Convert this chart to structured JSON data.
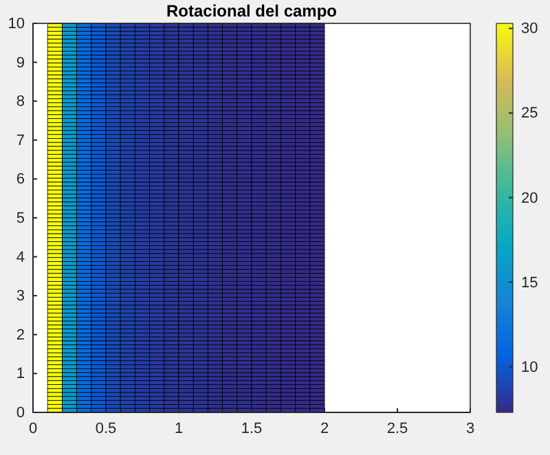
{
  "chart_data": {
    "type": "heatmap",
    "title": "Rotacional del campo",
    "x": [
      0.15,
      0.25,
      0.35,
      0.45,
      0.55,
      0.65,
      0.75,
      0.85,
      0.95,
      1.05,
      1.15,
      1.25,
      1.35,
      1.45,
      1.55,
      1.65,
      1.75,
      1.85,
      1.95
    ],
    "xlim": [
      0,
      3
    ],
    "xticks": [
      0,
      0.5,
      1,
      1.5,
      2,
      2.5,
      3
    ],
    "ylim": [
      0,
      10
    ],
    "yticks": [
      0,
      1,
      2,
      3,
      4,
      5,
      6,
      7,
      8,
      9,
      10
    ],
    "clim": [
      7.3,
      30.3
    ],
    "cticks": [
      10,
      15,
      20,
      25,
      30
    ],
    "cells": [
      [
        30.3,
        16,
        11.5,
        10,
        9.2,
        8.7,
        8.4,
        8.2,
        8,
        7.9,
        7.8,
        7.7,
        7.6,
        7.6,
        7.5,
        7.5,
        7.4,
        7.4,
        7.4
      ],
      [
        30.3,
        16,
        11.5,
        10,
        9.2,
        8.7,
        8.4,
        8.2,
        8,
        7.9,
        7.8,
        7.7,
        7.6,
        7.6,
        7.5,
        7.5,
        7.4,
        7.4,
        7.4
      ],
      [
        30.3,
        16,
        11.5,
        10,
        9.2,
        8.7,
        8.4,
        8.2,
        8,
        7.9,
        7.8,
        7.7,
        7.6,
        7.6,
        7.5,
        7.5,
        7.4,
        7.4,
        7.4
      ],
      [
        30.3,
        16,
        11.5,
        10,
        9.2,
        8.7,
        8.4,
        8.2,
        8,
        7.9,
        7.8,
        7.7,
        7.6,
        7.6,
        7.5,
        7.5,
        7.4,
        7.4,
        7.4
      ],
      [
        30.3,
        16,
        11.5,
        10,
        9.2,
        8.7,
        8.4,
        8.2,
        8,
        7.9,
        7.8,
        7.7,
        7.6,
        7.6,
        7.5,
        7.5,
        7.4,
        7.4,
        7.4
      ],
      [
        30.3,
        16,
        11.5,
        10,
        9.2,
        8.7,
        8.4,
        8.2,
        8,
        7.9,
        7.8,
        7.7,
        7.6,
        7.6,
        7.5,
        7.5,
        7.4,
        7.4,
        7.4
      ],
      [
        30.3,
        16,
        11.5,
        10,
        9.2,
        8.7,
        8.4,
        8.2,
        8,
        7.9,
        7.8,
        7.7,
        7.6,
        7.6,
        7.5,
        7.5,
        7.4,
        7.4,
        7.4
      ],
      [
        30.3,
        16,
        11.5,
        10,
        9.2,
        8.7,
        8.4,
        8.2,
        8,
        7.9,
        7.8,
        7.7,
        7.6,
        7.6,
        7.5,
        7.5,
        7.4,
        7.4,
        7.4
      ],
      [
        30.3,
        16,
        11.5,
        10,
        9.2,
        8.7,
        8.4,
        8.2,
        8,
        7.9,
        7.8,
        7.7,
        7.6,
        7.6,
        7.5,
        7.5,
        7.4,
        7.4,
        7.4
      ],
      [
        30.3,
        16,
        11.5,
        10,
        9.2,
        8.7,
        8.4,
        8.2,
        8,
        7.9,
        7.8,
        7.7,
        7.6,
        7.6,
        7.5,
        7.5,
        7.4,
        7.4,
        7.4
      ],
      [
        30.3,
        16,
        11.5,
        10,
        9.2,
        8.7,
        8.4,
        8.2,
        8,
        7.9,
        7.8,
        7.7,
        7.6,
        7.6,
        7.5,
        7.5,
        7.4,
        7.4,
        7.4
      ],
      [
        30.3,
        16,
        11.5,
        10,
        9.2,
        8.7,
        8.4,
        8.2,
        8,
        7.9,
        7.8,
        7.7,
        7.6,
        7.6,
        7.5,
        7.5,
        7.4,
        7.4,
        7.4
      ],
      [
        30.3,
        16,
        11.5,
        10,
        9.2,
        8.7,
        8.4,
        8.2,
        8,
        7.9,
        7.8,
        7.7,
        7.6,
        7.6,
        7.5,
        7.5,
        7.4,
        7.4,
        7.4
      ],
      [
        30.3,
        16,
        11.5,
        10,
        9.2,
        8.7,
        8.4,
        8.2,
        8,
        7.9,
        7.8,
        7.7,
        7.6,
        7.6,
        7.5,
        7.5,
        7.4,
        7.4,
        7.4
      ],
      [
        30.3,
        16,
        11.5,
        10,
        9.2,
        8.7,
        8.4,
        8.2,
        8,
        7.9,
        7.8,
        7.7,
        7.6,
        7.6,
        7.5,
        7.5,
        7.4,
        7.4,
        7.4
      ],
      [
        30.3,
        16,
        11.5,
        10,
        9.2,
        8.7,
        8.4,
        8.2,
        8,
        7.9,
        7.8,
        7.7,
        7.6,
        7.6,
        7.5,
        7.5,
        7.4,
        7.4,
        7.4
      ],
      [
        30.3,
        16,
        11.5,
        10,
        9.2,
        8.7,
        8.4,
        8.2,
        8,
        7.9,
        7.8,
        7.7,
        7.6,
        7.6,
        7.5,
        7.5,
        7.4,
        7.4,
        7.4
      ],
      [
        30.3,
        16,
        11.5,
        10,
        9.2,
        8.7,
        8.4,
        8.2,
        8,
        7.9,
        7.8,
        7.7,
        7.6,
        7.6,
        7.5,
        7.5,
        7.4,
        7.4,
        7.4
      ],
      [
        30.3,
        16,
        11.5,
        10,
        9.2,
        8.7,
        8.4,
        8.2,
        8,
        7.9,
        7.8,
        7.7,
        7.6,
        7.6,
        7.5,
        7.5,
        7.4,
        7.4,
        7.4
      ],
      [
        30.3,
        16,
        11.5,
        10,
        9.2,
        8.7,
        8.4,
        8.2,
        8,
        7.9,
        7.8,
        7.7,
        7.6,
        7.6,
        7.5,
        7.5,
        7.4,
        7.4,
        7.4
      ],
      [
        30.3,
        16,
        11.5,
        10,
        9.2,
        8.7,
        8.4,
        8.2,
        8,
        7.9,
        7.8,
        7.7,
        7.6,
        7.6,
        7.5,
        7.5,
        7.4,
        7.4,
        7.4
      ],
      [
        30.3,
        16,
        11.5,
        10,
        9.2,
        8.7,
        8.4,
        8.2,
        8,
        7.9,
        7.8,
        7.7,
        7.6,
        7.6,
        7.5,
        7.5,
        7.4,
        7.4,
        7.4
      ],
      [
        30.3,
        16,
        11.5,
        10,
        9.2,
        8.7,
        8.4,
        8.2,
        8,
        7.9,
        7.8,
        7.7,
        7.6,
        7.6,
        7.5,
        7.5,
        7.4,
        7.4,
        7.4
      ],
      [
        30.3,
        16,
        11.5,
        10,
        9.2,
        8.7,
        8.4,
        8.2,
        8,
        7.9,
        7.8,
        7.7,
        7.6,
        7.6,
        7.5,
        7.5,
        7.4,
        7.4,
        7.4
      ],
      [
        30.3,
        16,
        11.5,
        10,
        9.2,
        8.7,
        8.4,
        8.2,
        8,
        7.9,
        7.8,
        7.7,
        7.6,
        7.6,
        7.5,
        7.5,
        7.4,
        7.4,
        7.4
      ],
      [
        30.3,
        16,
        11.5,
        10,
        9.2,
        8.7,
        8.4,
        8.2,
        8,
        7.9,
        7.8,
        7.7,
        7.6,
        7.6,
        7.5,
        7.5,
        7.4,
        7.4,
        7.4
      ],
      [
        30.3,
        16,
        11.5,
        10,
        9.2,
        8.7,
        8.4,
        8.2,
        8,
        7.9,
        7.8,
        7.7,
        7.6,
        7.6,
        7.5,
        7.5,
        7.4,
        7.4,
        7.4
      ],
      [
        30.3,
        16,
        11.5,
        10,
        9.2,
        8.7,
        8.4,
        8.2,
        8,
        7.9,
        7.8,
        7.7,
        7.6,
        7.6,
        7.5,
        7.5,
        7.4,
        7.4,
        7.4
      ],
      [
        30.3,
        16,
        11.5,
        10,
        9.2,
        8.7,
        8.4,
        8.2,
        8,
        7.9,
        7.8,
        7.7,
        7.6,
        7.6,
        7.5,
        7.5,
        7.4,
        7.4,
        7.4
      ],
      [
        30.3,
        16,
        11.5,
        10,
        9.2,
        8.7,
        8.4,
        8.2,
        8,
        7.9,
        7.8,
        7.7,
        7.6,
        7.6,
        7.5,
        7.5,
        7.4,
        7.4,
        7.4
      ],
      [
        30.3,
        16,
        11.5,
        10,
        9.2,
        8.7,
        8.4,
        8.2,
        8,
        7.9,
        7.8,
        7.7,
        7.6,
        7.6,
        7.5,
        7.5,
        7.4,
        7.4,
        7.4
      ],
      [
        30.3,
        16,
        11.5,
        10,
        9.2,
        8.7,
        8.4,
        8.2,
        8,
        7.9,
        7.8,
        7.7,
        7.6,
        7.6,
        7.5,
        7.5,
        7.4,
        7.4,
        7.4
      ],
      [
        30.3,
        16,
        11.5,
        10,
        9.2,
        8.7,
        8.4,
        8.2,
        8,
        7.9,
        7.8,
        7.7,
        7.6,
        7.6,
        7.5,
        7.5,
        7.4,
        7.4,
        7.4
      ],
      [
        30.3,
        16,
        11.5,
        10,
        9.2,
        8.7,
        8.4,
        8.2,
        8,
        7.9,
        7.8,
        7.7,
        7.6,
        7.6,
        7.5,
        7.5,
        7.4,
        7.4,
        7.4
      ],
      [
        30.3,
        16,
        11.5,
        10,
        9.2,
        8.7,
        8.4,
        8.2,
        8,
        7.9,
        7.8,
        7.7,
        7.6,
        7.6,
        7.5,
        7.5,
        7.4,
        7.4,
        7.4
      ],
      [
        30.3,
        16,
        11.5,
        10,
        9.2,
        8.7,
        8.4,
        8.2,
        8,
        7.9,
        7.8,
        7.7,
        7.6,
        7.6,
        7.5,
        7.5,
        7.4,
        7.4,
        7.4
      ],
      [
        30.3,
        16,
        11.5,
        10,
        9.2,
        8.7,
        8.4,
        8.2,
        8,
        7.9,
        7.8,
        7.7,
        7.6,
        7.6,
        7.5,
        7.5,
        7.4,
        7.4,
        7.4
      ],
      [
        30.3,
        16,
        11.5,
        10,
        9.2,
        8.7,
        8.4,
        8.2,
        8,
        7.9,
        7.8,
        7.7,
        7.6,
        7.6,
        7.5,
        7.5,
        7.4,
        7.4,
        7.4
      ],
      [
        30.3,
        16,
        11.5,
        10,
        9.2,
        8.7,
        8.4,
        8.2,
        8,
        7.9,
        7.8,
        7.7,
        7.6,
        7.6,
        7.5,
        7.5,
        7.4,
        7.4,
        7.4
      ],
      [
        30.3,
        16,
        11.5,
        10,
        9.2,
        8.7,
        8.4,
        8.2,
        8,
        7.9,
        7.8,
        7.7,
        7.6,
        7.6,
        7.5,
        7.5,
        7.4,
        7.4,
        7.4
      ],
      [
        30.3,
        16,
        11.5,
        10,
        9.2,
        8.7,
        8.4,
        8.2,
        8,
        7.9,
        7.8,
        7.7,
        7.6,
        7.6,
        7.5,
        7.5,
        7.4,
        7.4,
        7.4
      ],
      [
        30.3,
        16,
        11.5,
        10,
        9.2,
        8.7,
        8.4,
        8.2,
        8,
        7.9,
        7.8,
        7.7,
        7.6,
        7.6,
        7.5,
        7.5,
        7.4,
        7.4,
        7.4
      ],
      [
        30.3,
        16,
        11.5,
        10,
        9.2,
        8.7,
        8.4,
        8.2,
        8,
        7.9,
        7.8,
        7.7,
        7.6,
        7.6,
        7.5,
        7.5,
        7.4,
        7.4,
        7.4
      ],
      [
        30.3,
        16,
        11.5,
        10,
        9.2,
        8.7,
        8.4,
        8.2,
        8,
        7.9,
        7.8,
        7.7,
        7.6,
        7.6,
        7.5,
        7.5,
        7.4,
        7.4,
        7.4
      ],
      [
        30.3,
        16,
        11.5,
        10,
        9.2,
        8.7,
        8.4,
        8.2,
        8,
        7.9,
        7.8,
        7.7,
        7.6,
        7.6,
        7.5,
        7.5,
        7.4,
        7.4,
        7.4
      ],
      [
        30.3,
        16,
        11.5,
        10,
        9.2,
        8.7,
        8.4,
        8.2,
        8,
        7.9,
        7.8,
        7.7,
        7.6,
        7.6,
        7.5,
        7.5,
        7.4,
        7.4,
        7.4
      ],
      [
        30.3,
        16,
        11.5,
        10,
        9.2,
        8.7,
        8.4,
        8.2,
        8,
        7.9,
        7.8,
        7.7,
        7.6,
        7.6,
        7.5,
        7.5,
        7.4,
        7.4,
        7.4
      ],
      [
        30.3,
        16,
        11.5,
        10,
        9.2,
        8.7,
        8.4,
        8.2,
        8,
        7.9,
        7.8,
        7.7,
        7.6,
        7.6,
        7.5,
        7.5,
        7.4,
        7.4,
        7.4
      ],
      [
        30.3,
        16,
        11.5,
        10,
        9.2,
        8.7,
        8.4,
        8.2,
        8,
        7.9,
        7.8,
        7.7,
        7.6,
        7.6,
        7.5,
        7.5,
        7.4,
        7.4,
        7.4
      ],
      [
        30.3,
        16,
        11.5,
        10,
        9.2,
        8.7,
        8.4,
        8.2,
        8,
        7.9,
        7.8,
        7.7,
        7.6,
        7.6,
        7.5,
        7.5,
        7.4,
        7.4,
        7.4
      ],
      [
        30.3,
        16,
        11.5,
        10,
        9.2,
        8.7,
        8.4,
        8.2,
        8,
        7.9,
        7.8,
        7.7,
        7.6,
        7.6,
        7.5,
        7.5,
        7.4,
        7.4,
        7.4
      ],
      [
        30.3,
        16,
        11.5,
        10,
        9.2,
        8.7,
        8.4,
        8.2,
        8,
        7.9,
        7.8,
        7.7,
        7.6,
        7.6,
        7.5,
        7.5,
        7.4,
        7.4,
        7.4
      ],
      [
        30.3,
        16,
        11.5,
        10,
        9.2,
        8.7,
        8.4,
        8.2,
        8,
        7.9,
        7.8,
        7.7,
        7.6,
        7.6,
        7.5,
        7.5,
        7.4,
        7.4,
        7.4
      ],
      [
        30.3,
        16,
        11.5,
        10,
        9.2,
        8.7,
        8.4,
        8.2,
        8,
        7.9,
        7.8,
        7.7,
        7.6,
        7.6,
        7.5,
        7.5,
        7.4,
        7.4,
        7.4
      ],
      [
        30.3,
        16,
        11.5,
        10,
        9.2,
        8.7,
        8.4,
        8.2,
        8,
        7.9,
        7.8,
        7.7,
        7.6,
        7.6,
        7.5,
        7.5,
        7.4,
        7.4,
        7.4
      ],
      [
        30.3,
        16,
        11.5,
        10,
        9.2,
        8.7,
        8.4,
        8.2,
        8,
        7.9,
        7.8,
        7.7,
        7.6,
        7.6,
        7.5,
        7.5,
        7.4,
        7.4,
        7.4
      ],
      [
        30.3,
        16,
        11.5,
        10,
        9.2,
        8.7,
        8.4,
        8.2,
        8,
        7.9,
        7.8,
        7.7,
        7.6,
        7.6,
        7.5,
        7.5,
        7.4,
        7.4,
        7.4
      ],
      [
        30.3,
        16,
        11.5,
        10,
        9.2,
        8.7,
        8.4,
        8.2,
        8,
        7.9,
        7.8,
        7.7,
        7.6,
        7.6,
        7.5,
        7.5,
        7.4,
        7.4,
        7.4
      ],
      [
        30.3,
        16,
        11.5,
        10,
        9.2,
        8.7,
        8.4,
        8.2,
        8,
        7.9,
        7.8,
        7.7,
        7.6,
        7.6,
        7.5,
        7.5,
        7.4,
        7.4,
        7.4
      ],
      [
        30.3,
        16,
        11.5,
        10,
        9.2,
        8.7,
        8.4,
        8.2,
        8,
        7.9,
        7.8,
        7.7,
        7.6,
        7.6,
        7.5,
        7.5,
        7.4,
        7.4,
        7.4
      ],
      [
        30.3,
        16,
        11.5,
        10,
        9.2,
        8.7,
        8.4,
        8.2,
        8,
        7.9,
        7.8,
        7.7,
        7.6,
        7.6,
        7.5,
        7.5,
        7.4,
        7.4,
        7.4
      ],
      [
        30.3,
        16,
        11.5,
        10,
        9.2,
        8.7,
        8.4,
        8.2,
        8,
        7.9,
        7.8,
        7.7,
        7.6,
        7.6,
        7.5,
        7.5,
        7.4,
        7.4,
        7.4
      ],
      [
        30.3,
        16,
        11.5,
        10,
        9.2,
        8.7,
        8.4,
        8.2,
        8,
        7.9,
        7.8,
        7.7,
        7.6,
        7.6,
        7.5,
        7.5,
        7.4,
        7.4,
        7.4
      ],
      [
        30.3,
        16,
        11.5,
        10,
        9.2,
        8.7,
        8.4,
        8.2,
        8,
        7.9,
        7.8,
        7.7,
        7.6,
        7.6,
        7.5,
        7.5,
        7.4,
        7.4,
        7.4
      ],
      [
        30.3,
        16,
        11.5,
        10,
        9.2,
        8.7,
        8.4,
        8.2,
        8,
        7.9,
        7.8,
        7.7,
        7.6,
        7.6,
        7.5,
        7.5,
        7.4,
        7.4,
        7.4
      ],
      [
        30.3,
        16,
        11.5,
        10,
        9.2,
        8.7,
        8.4,
        8.2,
        8,
        7.9,
        7.8,
        7.7,
        7.6,
        7.6,
        7.5,
        7.5,
        7.4,
        7.4,
        7.4
      ],
      [
        30.3,
        16,
        11.5,
        10,
        9.2,
        8.7,
        8.4,
        8.2,
        8,
        7.9,
        7.8,
        7.7,
        7.6,
        7.6,
        7.5,
        7.5,
        7.4,
        7.4,
        7.4
      ],
      [
        30.3,
        16,
        11.5,
        10,
        9.2,
        8.7,
        8.4,
        8.2,
        8,
        7.9,
        7.8,
        7.7,
        7.6,
        7.6,
        7.5,
        7.5,
        7.4,
        7.4,
        7.4
      ],
      [
        30.3,
        16,
        11.5,
        10,
        9.2,
        8.7,
        8.4,
        8.2,
        8,
        7.9,
        7.8,
        7.7,
        7.6,
        7.6,
        7.5,
        7.5,
        7.4,
        7.4,
        7.4
      ],
      [
        30.3,
        16,
        11.5,
        10,
        9.2,
        8.7,
        8.4,
        8.2,
        8,
        7.9,
        7.8,
        7.7,
        7.6,
        7.6,
        7.5,
        7.5,
        7.4,
        7.4,
        7.4
      ],
      [
        30.3,
        16,
        11.5,
        10,
        9.2,
        8.7,
        8.4,
        8.2,
        8,
        7.9,
        7.8,
        7.7,
        7.6,
        7.6,
        7.5,
        7.5,
        7.4,
        7.4,
        7.4
      ],
      [
        30.3,
        16,
        11.5,
        10,
        9.2,
        8.7,
        8.4,
        8.2,
        8,
        7.9,
        7.8,
        7.7,
        7.6,
        7.6,
        7.5,
        7.5,
        7.4,
        7.4,
        7.4
      ],
      [
        30.3,
        16,
        11.5,
        10,
        9.2,
        8.7,
        8.4,
        8.2,
        8,
        7.9,
        7.8,
        7.7,
        7.6,
        7.6,
        7.5,
        7.5,
        7.4,
        7.4,
        7.4
      ],
      [
        30.3,
        16,
        11.5,
        10,
        9.2,
        8.7,
        8.4,
        8.2,
        8,
        7.9,
        7.8,
        7.7,
        7.6,
        7.6,
        7.5,
        7.5,
        7.4,
        7.4,
        7.4
      ],
      [
        30.3,
        16,
        11.5,
        10,
        9.2,
        8.7,
        8.4,
        8.2,
        8,
        7.9,
        7.8,
        7.7,
        7.6,
        7.6,
        7.5,
        7.5,
        7.4,
        7.4,
        7.4
      ],
      [
        30.3,
        16,
        11.5,
        10,
        9.2,
        8.7,
        8.4,
        8.2,
        8,
        7.9,
        7.8,
        7.7,
        7.6,
        7.6,
        7.5,
        7.5,
        7.4,
        7.4,
        7.4
      ],
      [
        30.3,
        16,
        11.5,
        10,
        9.2,
        8.7,
        8.4,
        8.2,
        8,
        7.9,
        7.8,
        7.7,
        7.6,
        7.6,
        7.5,
        7.5,
        7.4,
        7.4,
        7.4
      ],
      [
        30.3,
        16,
        11.5,
        10,
        9.2,
        8.7,
        8.4,
        8.2,
        8,
        7.9,
        7.8,
        7.7,
        7.6,
        7.6,
        7.5,
        7.5,
        7.4,
        7.4,
        7.4
      ],
      [
        30.3,
        16,
        11.5,
        10,
        9.2,
        8.7,
        8.4,
        8.2,
        8,
        7.9,
        7.8,
        7.7,
        7.6,
        7.6,
        7.5,
        7.5,
        7.4,
        7.4,
        7.4
      ],
      [
        30.3,
        16,
        11.5,
        10,
        9.2,
        8.7,
        8.4,
        8.2,
        8,
        7.9,
        7.8,
        7.7,
        7.6,
        7.6,
        7.5,
        7.5,
        7.4,
        7.4,
        7.4
      ],
      [
        30.3,
        16,
        11.5,
        10,
        9.2,
        8.7,
        8.4,
        8.2,
        8,
        7.9,
        7.8,
        7.7,
        7.6,
        7.6,
        7.5,
        7.5,
        7.4,
        7.4,
        7.4
      ],
      [
        30.3,
        16,
        11.5,
        10,
        9.2,
        8.7,
        8.4,
        8.2,
        8,
        7.9,
        7.8,
        7.7,
        7.6,
        7.6,
        7.5,
        7.5,
        7.4,
        7.4,
        7.4
      ],
      [
        30.3,
        16,
        11.5,
        10,
        9.2,
        8.7,
        8.4,
        8.2,
        8,
        7.9,
        7.8,
        7.7,
        7.6,
        7.6,
        7.5,
        7.5,
        7.4,
        7.4,
        7.4
      ],
      [
        30.3,
        16,
        11.5,
        10,
        9.2,
        8.7,
        8.4,
        8.2,
        8,
        7.9,
        7.8,
        7.7,
        7.6,
        7.6,
        7.5,
        7.5,
        7.4,
        7.4,
        7.4
      ],
      [
        30.3,
        16,
        11.5,
        10,
        9.2,
        8.7,
        8.4,
        8.2,
        8,
        7.9,
        7.8,
        7.7,
        7.6,
        7.6,
        7.5,
        7.5,
        7.4,
        7.4,
        7.4
      ],
      [
        30.3,
        16,
        11.5,
        10,
        9.2,
        8.7,
        8.4,
        8.2,
        8,
        7.9,
        7.8,
        7.7,
        7.6,
        7.6,
        7.5,
        7.5,
        7.4,
        7.4,
        7.4
      ],
      [
        30.3,
        16,
        11.5,
        10,
        9.2,
        8.7,
        8.4,
        8.2,
        8,
        7.9,
        7.8,
        7.7,
        7.6,
        7.6,
        7.5,
        7.5,
        7.4,
        7.4,
        7.4
      ],
      [
        30.3,
        16,
        11.5,
        10,
        9.2,
        8.7,
        8.4,
        8.2,
        8,
        7.9,
        7.8,
        7.7,
        7.6,
        7.6,
        7.5,
        7.5,
        7.4,
        7.4,
        7.4
      ],
      [
        30.3,
        16,
        11.5,
        10,
        9.2,
        8.7,
        8.4,
        8.2,
        8,
        7.9,
        7.8,
        7.7,
        7.6,
        7.6,
        7.5,
        7.5,
        7.4,
        7.4,
        7.4
      ],
      [
        30.3,
        16,
        11.5,
        10,
        9.2,
        8.7,
        8.4,
        8.2,
        8,
        7.9,
        7.8,
        7.7,
        7.6,
        7.6,
        7.5,
        7.5,
        7.4,
        7.4,
        7.4
      ],
      [
        30.3,
        16,
        11.5,
        10,
        9.2,
        8.7,
        8.4,
        8.2,
        8,
        7.9,
        7.8,
        7.7,
        7.6,
        7.6,
        7.5,
        7.5,
        7.4,
        7.4,
        7.4
      ],
      [
        30.3,
        16,
        11.5,
        10,
        9.2,
        8.7,
        8.4,
        8.2,
        8,
        7.9,
        7.8,
        7.7,
        7.6,
        7.6,
        7.5,
        7.5,
        7.4,
        7.4,
        7.4
      ],
      [
        30.3,
        16,
        11.5,
        10,
        9.2,
        8.7,
        8.4,
        8.2,
        8,
        7.9,
        7.8,
        7.7,
        7.6,
        7.6,
        7.5,
        7.5,
        7.4,
        7.4,
        7.4
      ],
      [
        30.3,
        16,
        11.5,
        10,
        9.2,
        8.7,
        8.4,
        8.2,
        8,
        7.9,
        7.8,
        7.7,
        7.6,
        7.6,
        7.5,
        7.5,
        7.4,
        7.4,
        7.4
      ],
      [
        30.3,
        16,
        11.5,
        10,
        9.2,
        8.7,
        8.4,
        8.2,
        8,
        7.9,
        7.8,
        7.7,
        7.6,
        7.6,
        7.5,
        7.5,
        7.4,
        7.4,
        7.4
      ],
      [
        30.3,
        16,
        11.5,
        10,
        9.2,
        8.7,
        8.4,
        8.2,
        8,
        7.9,
        7.8,
        7.7,
        7.6,
        7.6,
        7.5,
        7.5,
        7.4,
        7.4,
        7.4
      ],
      [
        30.3,
        16,
        11.5,
        10,
        9.2,
        8.7,
        8.4,
        8.2,
        8,
        7.9,
        7.8,
        7.7,
        7.6,
        7.6,
        7.5,
        7.5,
        7.4,
        7.4,
        7.4
      ],
      [
        30.3,
        16,
        11.5,
        10,
        9.2,
        8.7,
        8.4,
        8.2,
        8,
        7.9,
        7.8,
        7.7,
        7.6,
        7.6,
        7.5,
        7.5,
        7.4,
        7.4,
        7.4
      ]
    ]
  }
}
